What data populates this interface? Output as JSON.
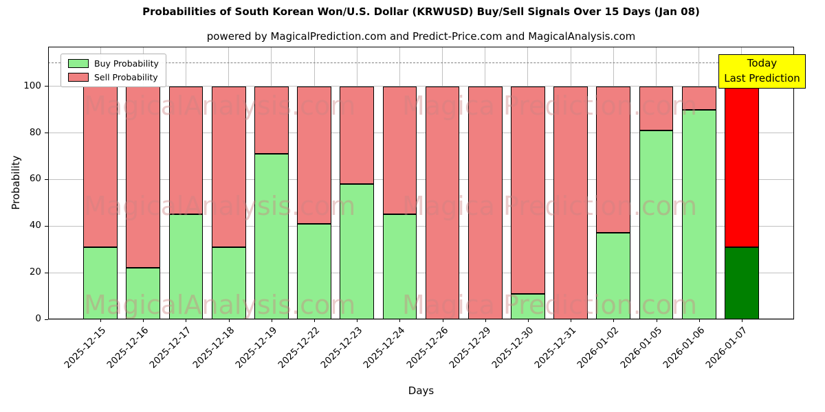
{
  "title": "Probabilities of South Korean Won/U.S. Dollar (KRWUSD) Buy/Sell Signals Over 15 Days (Jan 08)",
  "subtitle": "powered by MagicalPrediction.com and Predict-Price.com and MagicalAnalysis.com",
  "legend": {
    "buy": "Buy Probability",
    "sell": "Sell Probability"
  },
  "annotation": {
    "line1": "Today",
    "line2": "Last Prediction"
  },
  "axes": {
    "xlabel": "Days",
    "ylabel": "Probability",
    "yticks": [
      0,
      20,
      40,
      60,
      80,
      100
    ]
  },
  "watermarks": [
    "MagicalAnalysis.com",
    "Magica Prediction.com"
  ],
  "colors": {
    "buy": "#90EE90",
    "sell": "#F08080",
    "last_buy": "#008000",
    "last_sell": "#FF0000",
    "bar_edge": "#000000",
    "grid": "#c0c0c0",
    "dashed_line": "#7f7f7f",
    "annotation_bg": "#FFFF00",
    "watermark": "rgba(205,130,130,0.42)"
  },
  "chart_data": {
    "type": "bar",
    "stacked": true,
    "title": "Probabilities of South Korean Won/U.S. Dollar (KRWUSD) Buy/Sell Signals Over 15 Days (Jan 08)",
    "xlabel": "Days",
    "ylabel": "Probability",
    "ylim": [
      0,
      117
    ],
    "dashed_line_y": 110,
    "grid": true,
    "legend_position": "upper left",
    "categories": [
      "2025-12-15",
      "2025-12-16",
      "2025-12-17",
      "2025-12-18",
      "2025-12-19",
      "2025-12-22",
      "2025-12-23",
      "2025-12-24",
      "2025-12-26",
      "2025-12-29",
      "2025-12-30",
      "2025-12-31",
      "2026-01-02",
      "2026-01-05",
      "2026-01-06",
      "2026-01-07"
    ],
    "series": [
      {
        "name": "Buy Probability",
        "values": [
          31,
          22,
          45,
          31,
          71,
          41,
          58,
          45,
          0,
          0,
          11,
          0,
          37,
          81,
          90,
          31
        ]
      },
      {
        "name": "Sell Probability",
        "values": [
          69,
          78,
          55,
          69,
          29,
          59,
          42,
          55,
          100,
          100,
          89,
          100,
          63,
          19,
          10,
          69
        ]
      }
    ]
  }
}
